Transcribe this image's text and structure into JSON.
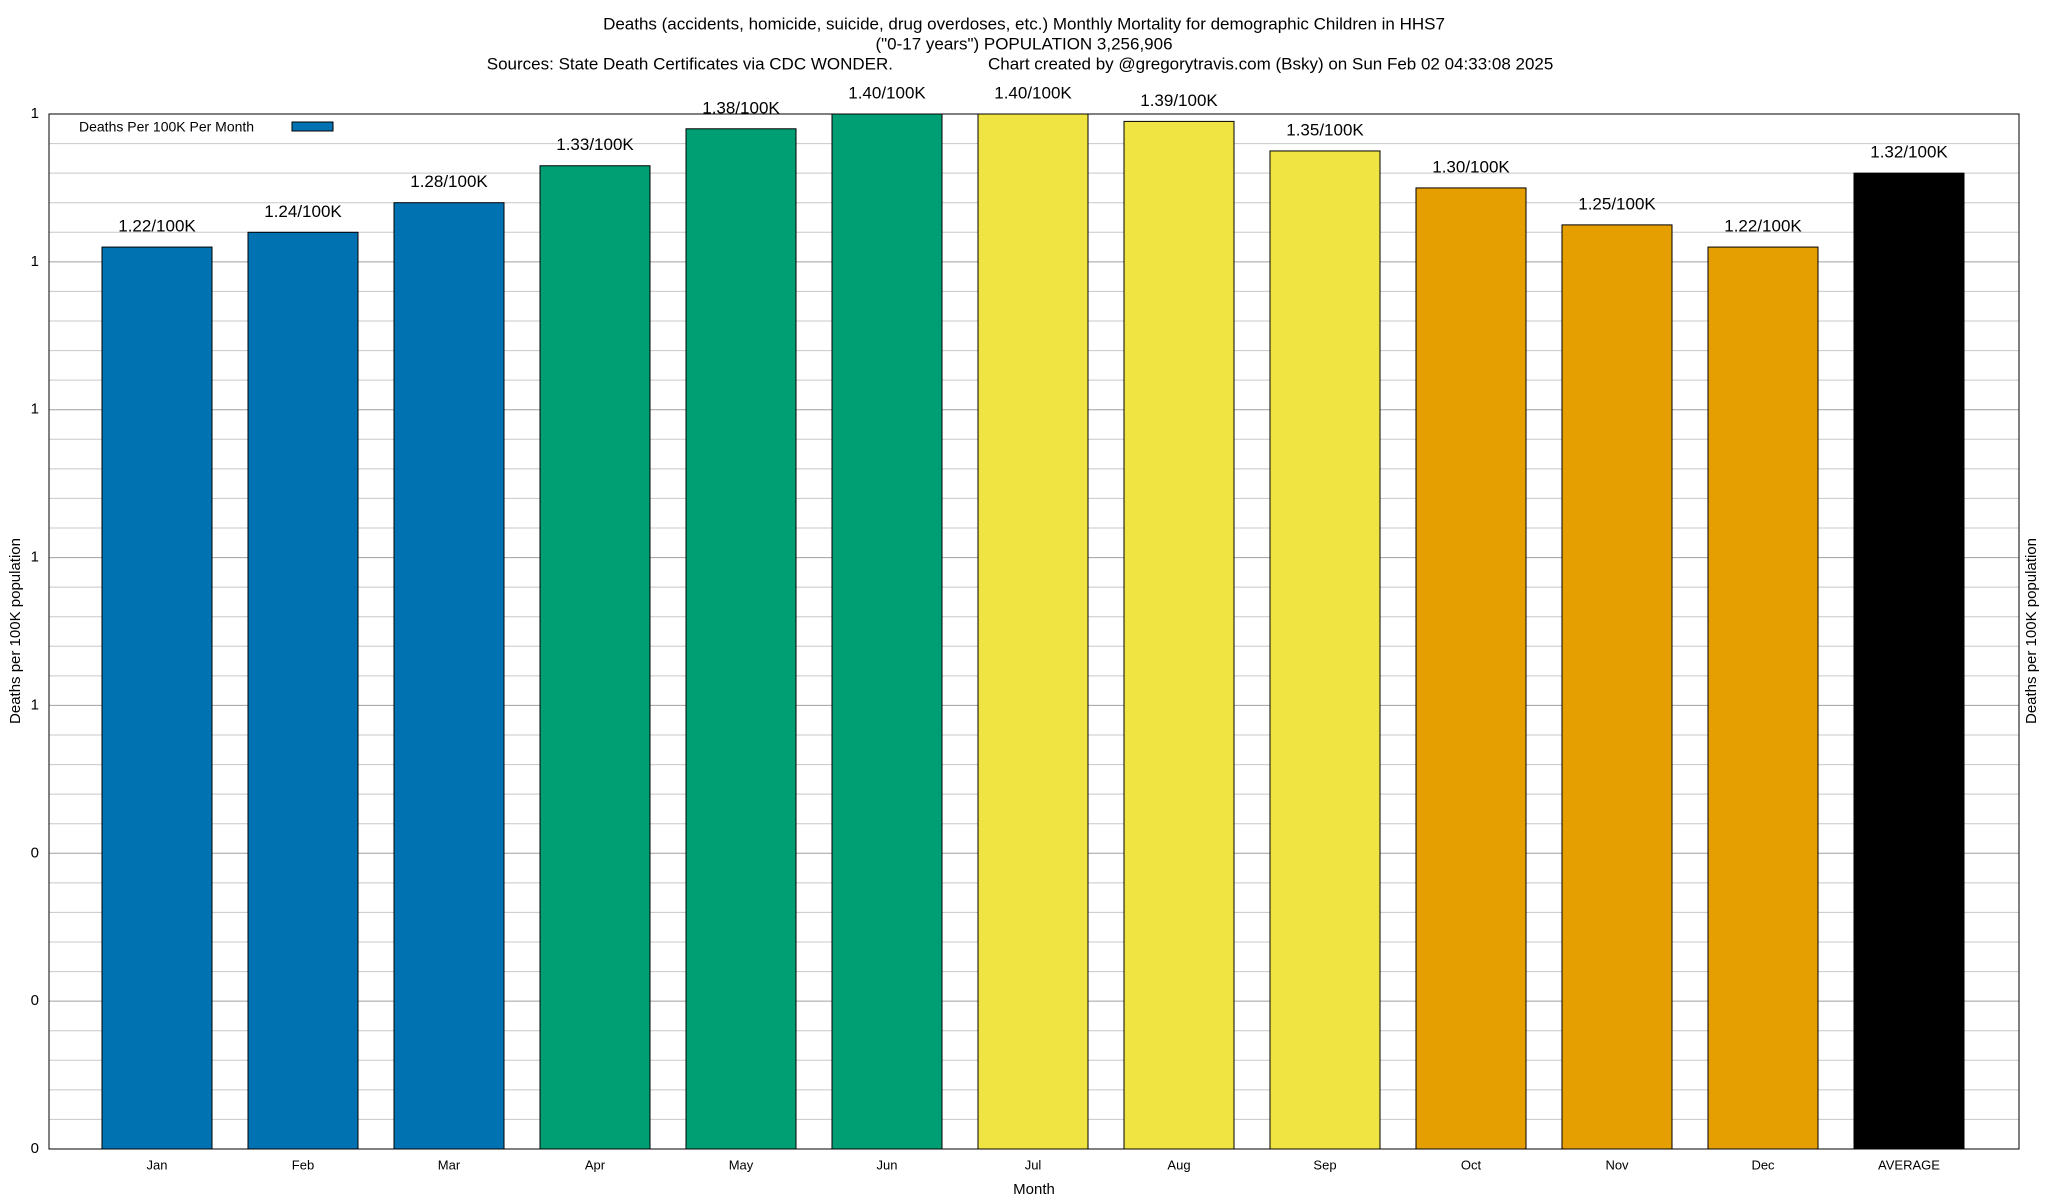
{
  "chart_data": {
    "type": "bar",
    "title": "Deaths (accidents, homicide, suicide, drug overdoses, etc.) Monthly Mortality for demographic Children in HHS7",
    "subtitle": "(\"0-17 years\") POPULATION 3,256,906",
    "sources": "Sources: State Death Certificates via CDC WONDER.",
    "credit": "Chart created by @gregorytravis.com (Bsky) on Sun Feb 02 04:33:08 2025",
    "xlabel": "Month",
    "ylabel": "Deaths per 100K population",
    "y2label": "Deaths per 100K population",
    "categories": [
      "Jan",
      "Feb",
      "Mar",
      "Apr",
      "May",
      "Jun",
      "Jul",
      "Aug",
      "Sep",
      "Oct",
      "Nov",
      "Dec",
      "AVERAGE"
    ],
    "series": [
      {
        "name": "Deaths Per 100K Per Month",
        "color": "#0072b2",
        "colors": [
          "#0072b2",
          "#0072b2",
          "#0072b2",
          "#009e73",
          "#009e73",
          "#009e73",
          "#f0e442",
          "#f0e442",
          "#f0e442",
          "#e69f00",
          "#e69f00",
          "#e69f00",
          "#000000"
        ],
        "values": [
          1.22,
          1.24,
          1.28,
          1.33,
          1.38,
          1.4,
          1.4,
          1.39,
          1.35,
          1.3,
          1.25,
          1.22,
          1.32
        ],
        "value_labels": [
          "1.22/100K",
          "1.24/100K",
          "1.28/100K",
          "1.33/100K",
          "1.38/100K",
          "1.40/100K",
          "1.40/100K",
          "1.39/100K",
          "1.35/100K",
          "1.30/100K",
          "1.25/100K",
          "1.22/100K",
          "1.32/100K"
        ]
      }
    ],
    "ylim": [
      0,
      1.4
    ],
    "yticks": [
      0,
      {
        "value": 0.2,
        "label": "0"
      },
      {
        "value": 0.4,
        "label": "0"
      },
      {
        "value": 0.6,
        "label": "1"
      },
      {
        "value": 0.8,
        "label": "1"
      },
      1,
      {
        "value": 1.2,
        "label": "1"
      },
      {
        "value": 1.4,
        "label": "1"
      }
    ],
    "minor_per_major": 5,
    "grid": true,
    "legend": "top-left"
  }
}
